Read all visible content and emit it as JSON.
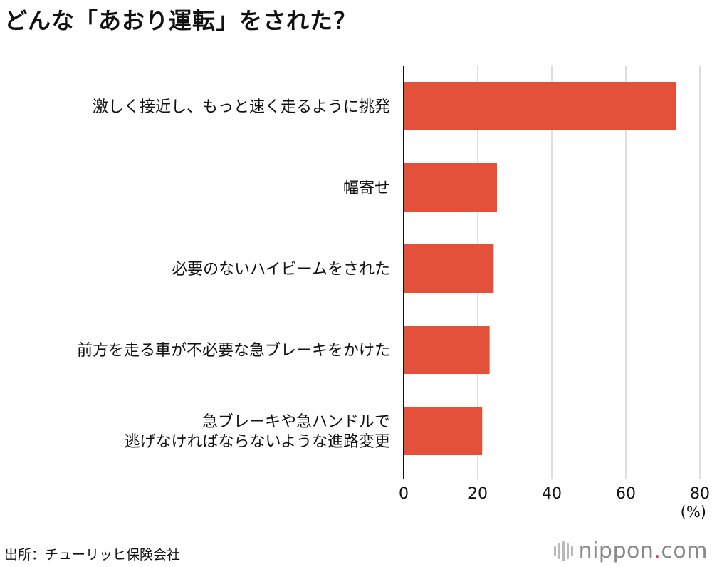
{
  "title": "どんな「あおり運転」をされた？",
  "unit": "(%)",
  "source": "出所：チューリッヒ保険会社",
  "logo": {
    "name": "nippon",
    "dot": ".",
    "suffix": "com"
  },
  "colors": {
    "bar": "#e4513a",
    "grid": "#c8c8c8",
    "axis": "#111111"
  },
  "chart_data": {
    "type": "bar",
    "orientation": "horizontal",
    "categories": [
      [
        "激しく接近し、もっと速く走るように挑発"
      ],
      [
        "幅寄せ"
      ],
      [
        "必要のないハイビームをされた"
      ],
      [
        "前方を走る車が不必要な急ブレーキをかけた"
      ],
      [
        "急ブレーキや急ハンドルで",
        "逃げなければならないような進路変更"
      ]
    ],
    "values": [
      73.5,
      25.2,
      24.3,
      23.2,
      21.2
    ],
    "xlim": [
      0,
      80
    ],
    "xticks": [
      "0",
      "20",
      "40",
      "60",
      "80"
    ],
    "grid": true
  }
}
